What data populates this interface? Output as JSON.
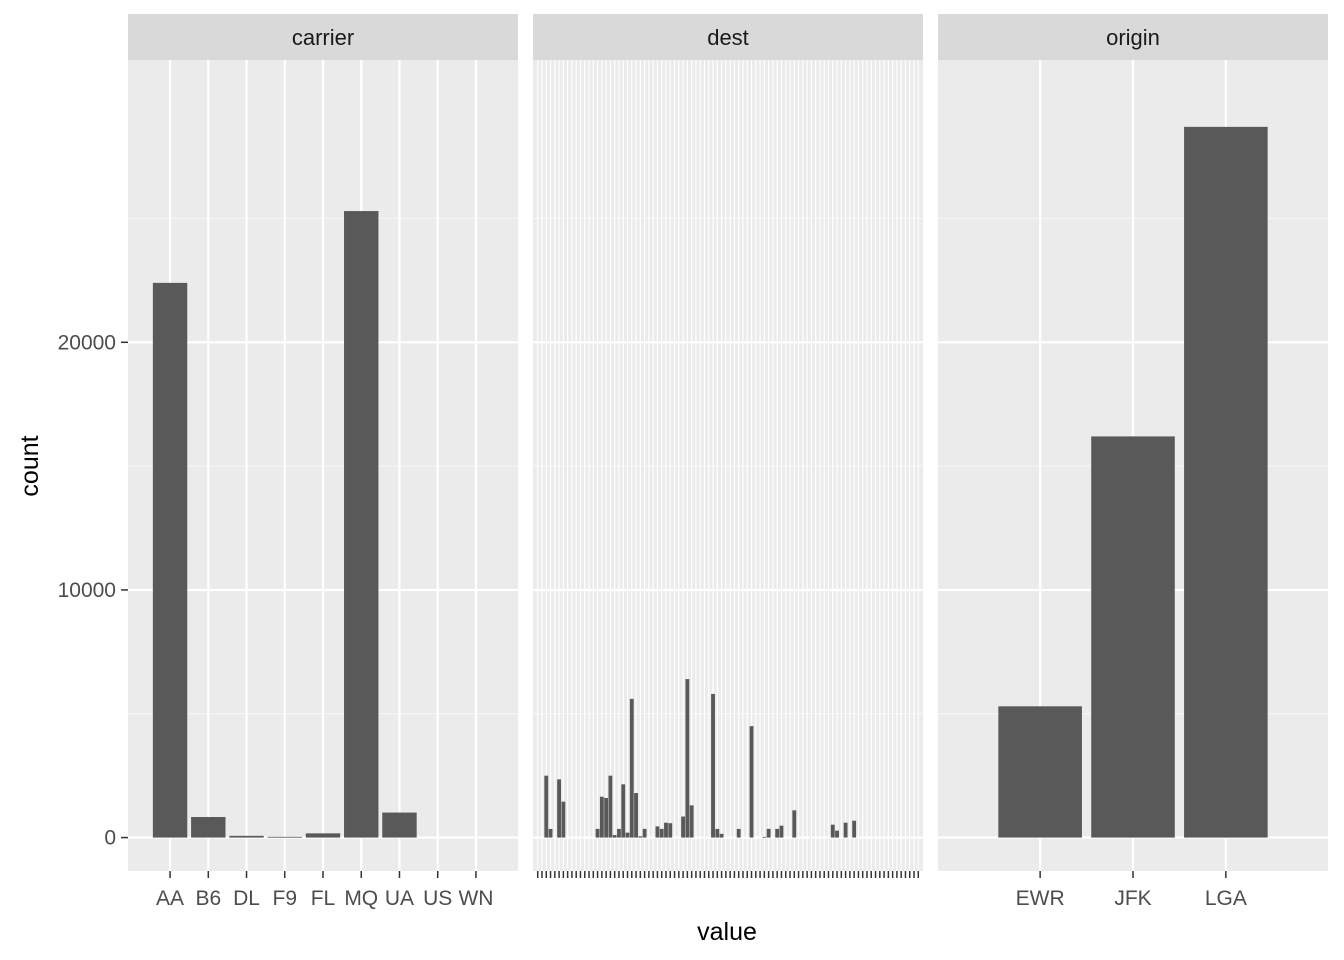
{
  "chart_data": {
    "type": "bar",
    "facet_by": "name",
    "xlabel": "value",
    "ylabel": "count",
    "ylim": [
      -1350,
      31400
    ],
    "y_ticks": [
      0,
      10000,
      20000
    ],
    "y_tick_labels": [
      "0",
      "10000",
      "20000"
    ],
    "grid": true,
    "facets": [
      {
        "name": "carrier",
        "categories": [
          "AA",
          "B6",
          "DL",
          "F9",
          "FL",
          "MQ",
          "UA",
          "US",
          "WN"
        ],
        "values": [
          22400,
          830,
          70,
          30,
          170,
          25300,
          1010,
          0,
          0
        ]
      },
      {
        "name": "dest",
        "categories": [
          "",
          "",
          "",
          "",
          "",
          "",
          "",
          "",
          "",
          "",
          "",
          "",
          "",
          "",
          "",
          "",
          "",
          "",
          "",
          "",
          "",
          "",
          "",
          "",
          "",
          "",
          "",
          "",
          "",
          "",
          "",
          "",
          "",
          "",
          "",
          "",
          "",
          "",
          "",
          "",
          "",
          "",
          "",
          "",
          "",
          "",
          "",
          "",
          "",
          "",
          "",
          "",
          "",
          "",
          "",
          "",
          "",
          "",
          "",
          "",
          "",
          "",
          "",
          "",
          "",
          "",
          "",
          "",
          "",
          "",
          "",
          "",
          "",
          "",
          "",
          "",
          "",
          "",
          "",
          "",
          "",
          "",
          "",
          "",
          "",
          "",
          "",
          "",
          "",
          ""
        ],
        "values": [
          0,
          0,
          2500,
          350,
          0,
          2350,
          1450,
          0,
          0,
          0,
          0,
          0,
          0,
          0,
          350,
          1650,
          1600,
          2500,
          100,
          350,
          2150,
          200,
          5600,
          1800,
          50,
          350,
          0,
          0,
          450,
          350,
          600,
          580,
          0,
          0,
          850,
          6400,
          1300,
          0,
          0,
          0,
          0,
          5800,
          350,
          150,
          0,
          0,
          0,
          350,
          0,
          0,
          4500,
          0,
          0,
          30,
          350,
          0,
          350,
          480,
          0,
          0,
          1100,
          0,
          0,
          0,
          0,
          0,
          0,
          0,
          0,
          520,
          280,
          0,
          600,
          0,
          680,
          0,
          0,
          0,
          0,
          0,
          0,
          0,
          0,
          0,
          0,
          0,
          0,
          0,
          0,
          0
        ]
      },
      {
        "name": "origin",
        "categories": [
          "EWR",
          "JFK",
          "LGA"
        ],
        "values": [
          5300,
          16200,
          28700
        ]
      }
    ]
  }
}
